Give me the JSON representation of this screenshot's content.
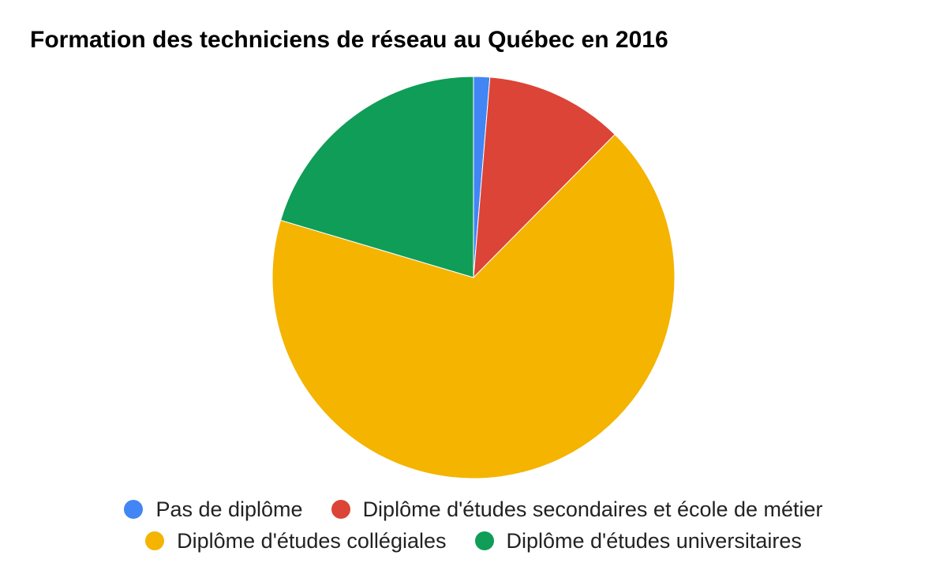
{
  "chart_data": {
    "type": "pie",
    "title": "Formation des techniciens de réseau au Québec en 2016",
    "legend_position": "bottom",
    "start_angle_deg": 0,
    "slices": [
      {
        "label": "Pas de diplôme",
        "value": 1.3,
        "color": "#4285F4"
      },
      {
        "label": "Diplôme d'études secondaires et école de métier",
        "value": 11.1,
        "color": "#DB4437"
      },
      {
        "label": "Diplôme d'études collégiales",
        "value": 67.2,
        "color": "#F4B400"
      },
      {
        "label": "Diplôme d'études universitaires",
        "value": 20.4,
        "color": "#0F9D58"
      }
    ]
  }
}
